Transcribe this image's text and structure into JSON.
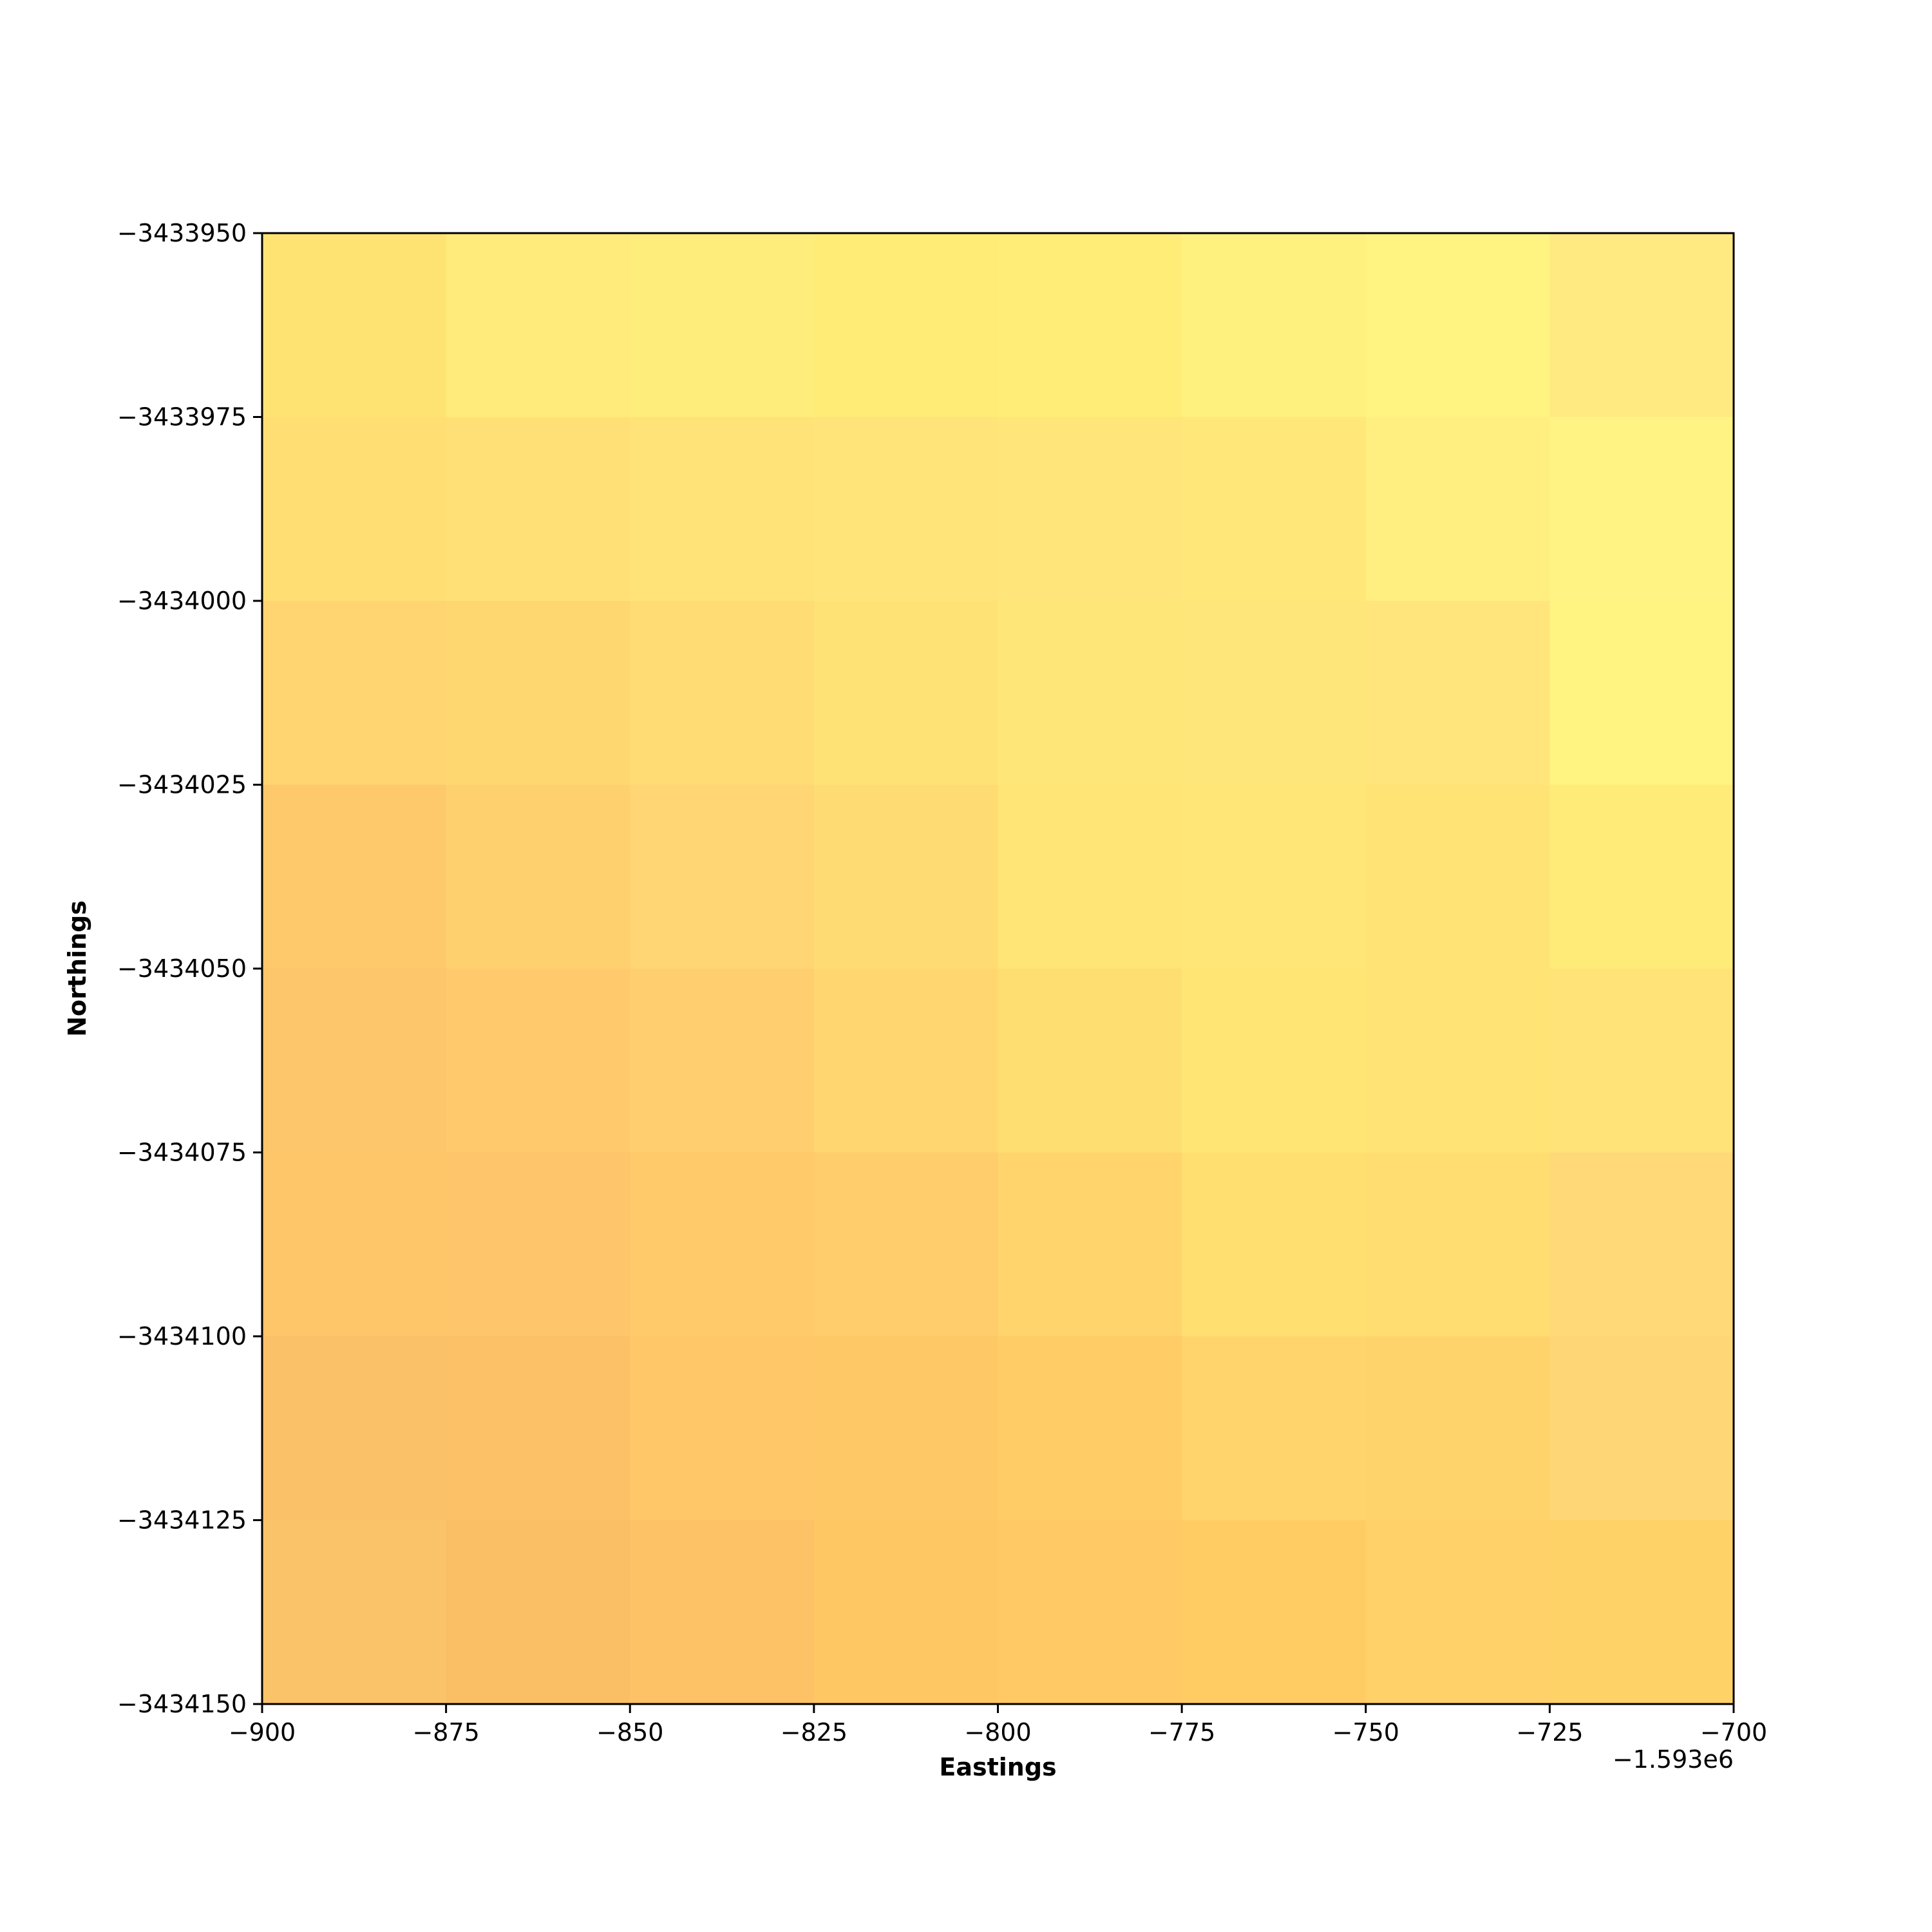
{
  "chart_data": {
    "type": "heatmap",
    "title": "",
    "xlabel": "Eastings",
    "ylabel": "Northings",
    "x_offset_label": "−1.593e6",
    "x_offset": -1593000,
    "xlim": [
      -900,
      -700
    ],
    "ylim": [
      -3434150,
      -3433950
    ],
    "xticks": [
      -900,
      -875,
      -850,
      -825,
      -800,
      -775,
      -750,
      -725,
      -700
    ],
    "xtick_labels": [
      "−900",
      "−875",
      "−850",
      "−825",
      "−800",
      "−775",
      "−750",
      "−725",
      "−700"
    ],
    "yticks": [
      -3433950,
      -3433975,
      -3434000,
      -3434025,
      -3434050,
      -3434075,
      -3434100,
      -3434125,
      -3434150
    ],
    "ytick_labels": [
      "−3433950",
      "−3433975",
      "−3434000",
      "−3434025",
      "−3434050",
      "−3434075",
      "−3434100",
      "−3434125",
      "−3434150"
    ],
    "cell_size": 25,
    "grid": false,
    "colormap_note": "cells colored pale yellow to light orange",
    "cell_x_edges": [
      -900,
      -875,
      -850,
      -825,
      -800,
      -775,
      -750,
      -725,
      -700
    ],
    "cell_y_edges_top_to_bottom": [
      -3433950,
      -3433975,
      -3434000,
      -3434025,
      -3434050,
      -3434075,
      -3434100,
      -3434125,
      -3434150
    ],
    "cell_colors": [
      [
        "#ffe372",
        "#ffeb7b",
        "#ffed7b",
        "#ffec77",
        "#ffed77",
        "#fff17d",
        "#fff381",
        "#ffea82"
      ],
      [
        "#ffdf74",
        "#ffe077",
        "#ffe378",
        "#ffe479",
        "#ffe57a",
        "#ffe77a",
        "#ffef80",
        "#fff483"
      ],
      [
        "#ffd571",
        "#ffd771",
        "#ffdc74",
        "#ffe276",
        "#ffe678",
        "#ffe67a",
        "#ffe57c",
        "#fff381"
      ],
      [
        "#fec96a",
        "#ffd06e",
        "#ffd673",
        "#ffdc73",
        "#ffe575",
        "#ffe676",
        "#ffe475",
        "#ffec78"
      ],
      [
        "#fec66a",
        "#ffc96c",
        "#ffcf6f",
        "#ffd670",
        "#ffde71",
        "#ffe674",
        "#ffe375",
        "#ffe378"
      ],
      [
        "#fec569",
        "#fec56a",
        "#ffca6a",
        "#ffcd6b",
        "#ffd46d",
        "#ffdf70",
        "#ffdd71",
        "#ffd977"
      ],
      [
        "#fbc168",
        "#fcc167",
        "#ffc768",
        "#ffc866",
        "#ffcc66",
        "#ffd46c",
        "#ffd36c",
        "#ffd675"
      ],
      [
        "#fbc369",
        "#fabe65",
        "#fdc266",
        "#ffc664",
        "#ffc965",
        "#ffcc63",
        "#ffd168",
        "#ffd267"
      ]
    ]
  }
}
